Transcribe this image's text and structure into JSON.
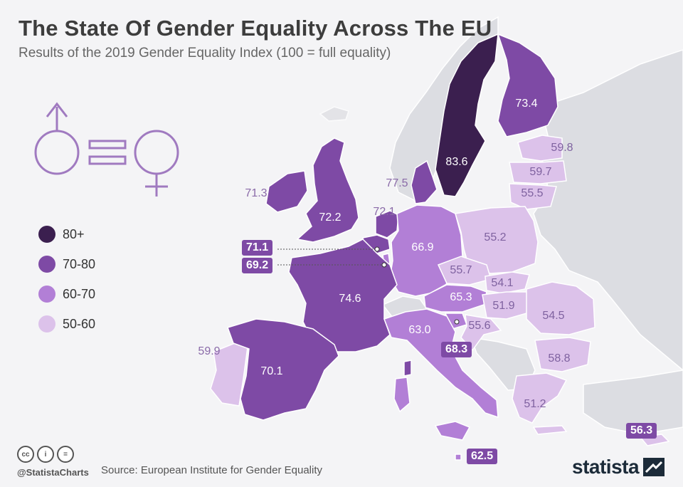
{
  "title": "The State Of Gender Equality Across The EU",
  "subtitle": "Results of the 2019 Gender Equality Index (100 = full equality)",
  "legend": [
    {
      "label": "80+",
      "color": "#3b1f4f"
    },
    {
      "label": "70-80",
      "color": "#7e4aa5"
    },
    {
      "label": "60-70",
      "color": "#b27fd6"
    },
    {
      "label": "50-60",
      "color": "#dcc2ea"
    }
  ],
  "colors": {
    "background": "#f4f4f6",
    "non_eu_land": "#dcdde2",
    "border": "#ffffff",
    "callout": "#7e4aa5",
    "sea": "#f4f4f6"
  },
  "icon": "male-equals-female-icon",
  "countries": {
    "sweden": {
      "value": "83.6",
      "band": "80+"
    },
    "finland": {
      "value": "73.4",
      "band": "70-80"
    },
    "estonia": {
      "value": "59.8",
      "band": "50-60"
    },
    "latvia": {
      "value": "59.7",
      "band": "50-60"
    },
    "lithuania": {
      "value": "55.5",
      "band": "50-60"
    },
    "denmark": {
      "value": "77.5",
      "band": "70-80"
    },
    "ireland": {
      "value": "71.3",
      "band": "70-80"
    },
    "uk": {
      "value": "72.2",
      "band": "70-80"
    },
    "netherlands": {
      "value": "72.1",
      "band": "70-80"
    },
    "belgium": {
      "value": "71.1",
      "band": "70-80"
    },
    "luxembourg": {
      "value": "69.2",
      "band": "60-70"
    },
    "germany": {
      "value": "66.9",
      "band": "60-70"
    },
    "poland": {
      "value": "55.2",
      "band": "50-60"
    },
    "czechia": {
      "value": "55.7",
      "band": "50-60"
    },
    "slovakia": {
      "value": "54.1",
      "band": "50-60"
    },
    "austria": {
      "value": "65.3",
      "band": "60-70"
    },
    "hungary": {
      "value": "51.9",
      "band": "50-60"
    },
    "romania": {
      "value": "54.5",
      "band": "50-60"
    },
    "france": {
      "value": "74.6",
      "band": "70-80"
    },
    "slovenia": {
      "value": "68.3",
      "band": "60-70"
    },
    "croatia": {
      "value": "55.6",
      "band": "50-60"
    },
    "italy": {
      "value": "63.0",
      "band": "60-70"
    },
    "bulgaria": {
      "value": "58.8",
      "band": "50-60"
    },
    "portugal": {
      "value": "59.9",
      "band": "50-60"
    },
    "spain": {
      "value": "70.1",
      "band": "70-80"
    },
    "greece": {
      "value": "51.2",
      "band": "50-60"
    },
    "malta": {
      "value": "62.5",
      "band": "60-70"
    },
    "cyprus": {
      "value": "56.3",
      "band": "50-60"
    }
  },
  "footer": {
    "handle": "@StatistaCharts",
    "source": "Source: European Institute for Gender Equality",
    "brand": "statista",
    "cc_icons": [
      "creative-commons-icon",
      "attribution-icon",
      "no-derivatives-icon"
    ]
  }
}
